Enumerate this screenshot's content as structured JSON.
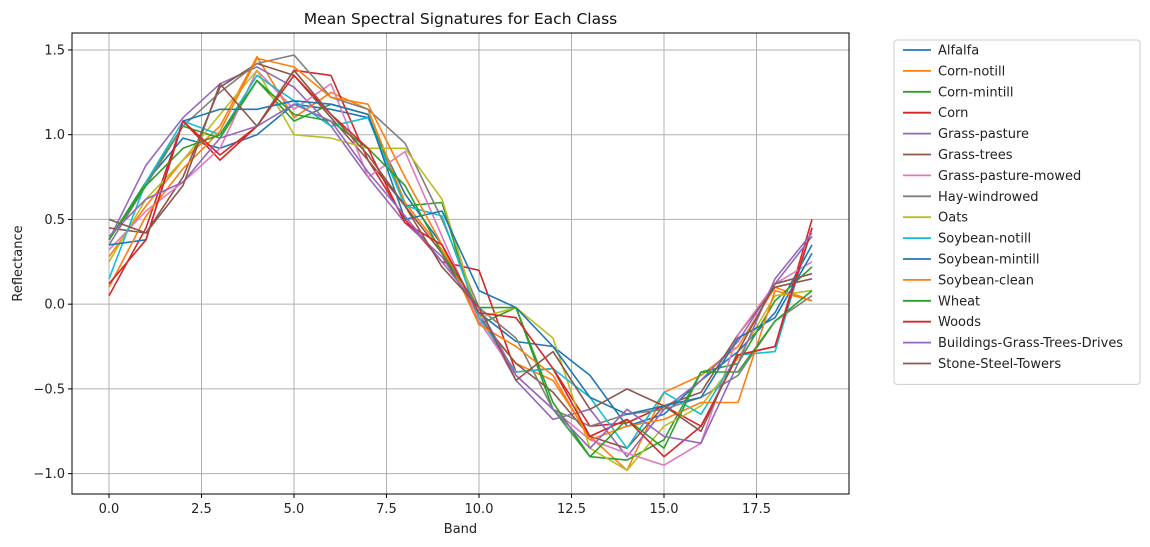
{
  "chart_data": {
    "type": "line",
    "title": "Mean Spectral Signatures for Each Class",
    "xlabel": "Band",
    "ylabel": "Reflectance",
    "xlim": [
      -1.0,
      20.0
    ],
    "ylim": [
      -1.12,
      1.6
    ],
    "x_ticks": [
      0.0,
      2.5,
      5.0,
      7.5,
      10.0,
      12.5,
      15.0,
      17.5
    ],
    "x_tick_labels": [
      "0.0",
      "2.5",
      "5.0",
      "7.5",
      "10.0",
      "12.5",
      "15.0",
      "17.5"
    ],
    "y_ticks": [
      -1.0,
      -0.5,
      0.0,
      0.5,
      1.0,
      1.5
    ],
    "y_tick_labels": [
      "−1.0",
      "−0.5",
      "0.0",
      "0.5",
      "1.0",
      "1.5"
    ],
    "grid": true,
    "legend_position": "outside-right",
    "x": [
      0,
      1,
      2,
      3,
      4,
      5,
      6,
      7,
      8,
      9,
      10,
      11,
      12,
      13,
      14,
      15,
      16,
      17,
      18,
      19
    ],
    "series": [
      {
        "name": "Alfalfa",
        "color": "#1f77b4",
        "values": [
          0.38,
          0.72,
          0.98,
          0.92,
          1.0,
          1.18,
          1.15,
          1.1,
          0.65,
          0.35,
          -0.05,
          -0.22,
          -0.25,
          -0.42,
          -0.72,
          -0.65,
          -0.45,
          -0.28,
          -0.05,
          0.35
        ]
      },
      {
        "name": "Corn-notill",
        "color": "#ff7f0e",
        "values": [
          0.28,
          0.58,
          0.85,
          1.05,
          1.46,
          1.1,
          1.25,
          1.15,
          0.6,
          0.32,
          -0.08,
          -0.35,
          -0.45,
          -0.78,
          -0.98,
          -0.52,
          -0.42,
          -0.25,
          0.1,
          0.02
        ]
      },
      {
        "name": "Corn-mintill",
        "color": "#2ca02c",
        "values": [
          0.38,
          0.72,
          1.05,
          0.98,
          1.32,
          1.08,
          1.18,
          1.12,
          0.58,
          0.6,
          -0.12,
          -0.02,
          -0.62,
          -0.9,
          -0.92,
          -0.8,
          -0.4,
          -0.35,
          0.02,
          0.22
        ]
      },
      {
        "name": "Corn",
        "color": "#d62728",
        "values": [
          0.05,
          0.45,
          1.08,
          0.85,
          1.05,
          1.38,
          1.35,
          0.85,
          0.5,
          0.25,
          0.2,
          -0.4,
          -0.38,
          -0.72,
          -0.7,
          -0.6,
          -0.72,
          -0.3,
          -0.25,
          0.5
        ]
      },
      {
        "name": "Grass-pasture",
        "color": "#9467bd",
        "values": [
          0.38,
          0.82,
          1.1,
          1.3,
          1.4,
          1.28,
          1.05,
          0.75,
          0.48,
          0.28,
          -0.05,
          -0.45,
          -0.68,
          -0.62,
          -0.9,
          -0.62,
          -0.45,
          -0.22,
          0.12,
          0.4
        ]
      },
      {
        "name": "Grass-trees",
        "color": "#8c564b",
        "values": [
          0.45,
          0.42,
          0.75,
          1.28,
          1.42,
          1.35,
          1.1,
          0.85,
          0.58,
          0.3,
          -0.08,
          -0.35,
          -0.52,
          -0.78,
          -0.85,
          -0.6,
          -0.52,
          -0.18,
          0.1,
          0.15
        ]
      },
      {
        "name": "Grass-pasture-mowed",
        "color": "#e377c2",
        "values": [
          0.32,
          0.55,
          0.72,
          0.92,
          1.38,
          1.15,
          1.3,
          0.75,
          0.9,
          0.4,
          -0.1,
          -0.42,
          -0.62,
          -0.8,
          -0.88,
          -0.95,
          -0.82,
          -0.18,
          0.12,
          0.25
        ]
      },
      {
        "name": "Hay-windrowed",
        "color": "#7f7f7f",
        "values": [
          0.35,
          0.7,
          1.05,
          1.25,
          1.42,
          1.47,
          1.22,
          1.15,
          0.95,
          0.5,
          -0.02,
          -0.2,
          -0.62,
          -0.72,
          -0.65,
          -0.62,
          -0.55,
          -0.42,
          -0.1,
          0.05
        ]
      },
      {
        "name": "Oats",
        "color": "#bcbd22",
        "values": [
          0.25,
          0.62,
          0.85,
          1.12,
          1.38,
          1.0,
          0.98,
          0.92,
          0.92,
          0.62,
          -0.08,
          -0.02,
          -0.2,
          -0.85,
          -0.98,
          -0.72,
          -0.6,
          -0.32,
          0.05,
          0.08
        ]
      },
      {
        "name": "Soybean-notill",
        "color": "#17becf",
        "values": [
          0.15,
          0.72,
          1.08,
          1.0,
          1.35,
          1.2,
          1.05,
          1.1,
          0.58,
          0.52,
          -0.08,
          -0.4,
          -0.38,
          -0.55,
          -0.85,
          -0.52,
          -0.65,
          -0.3,
          -0.28,
          0.45
        ]
      },
      {
        "name": "Soybean-mintill",
        "color": "#1f77b4",
        "values": [
          0.35,
          0.38,
          1.08,
          1.15,
          1.15,
          1.2,
          1.18,
          1.12,
          0.5,
          0.55,
          0.08,
          -0.02,
          -0.25,
          -0.55,
          -0.65,
          -0.6,
          -0.55,
          -0.2,
          -0.08,
          0.3
        ]
      },
      {
        "name": "Soybean-clean",
        "color": "#ff7f0e",
        "values": [
          0.1,
          0.52,
          0.8,
          1.02,
          1.45,
          1.4,
          1.22,
          1.18,
          0.75,
          0.35,
          -0.12,
          -0.25,
          -0.42,
          -0.8,
          -0.72,
          -0.68,
          -0.58,
          -0.58,
          0.08,
          0.02
        ]
      },
      {
        "name": "Wheat",
        "color": "#2ca02c",
        "values": [
          0.38,
          0.7,
          0.92,
          1.0,
          1.32,
          1.12,
          1.08,
          0.92,
          0.7,
          0.3,
          -0.02,
          -0.02,
          -0.58,
          -0.9,
          -0.68,
          -0.85,
          -0.4,
          -0.4,
          -0.1,
          0.08
        ]
      },
      {
        "name": "Woods",
        "color": "#d62728",
        "values": [
          0.12,
          0.38,
          1.08,
          0.88,
          1.05,
          1.35,
          1.12,
          0.92,
          0.48,
          0.35,
          -0.05,
          -0.08,
          -0.38,
          -0.78,
          -0.68,
          -0.9,
          -0.72,
          -0.3,
          -0.25,
          0.45
        ]
      },
      {
        "name": "Buildings-Grass-Trees-Drives",
        "color": "#9467bd",
        "values": [
          0.4,
          0.62,
          0.72,
          0.98,
          1.05,
          1.18,
          1.08,
          0.78,
          0.52,
          0.25,
          -0.02,
          -0.42,
          -0.62,
          -0.85,
          -0.62,
          -0.78,
          -0.82,
          -0.35,
          0.15,
          0.42
        ]
      },
      {
        "name": "Stone-Steel-Towers",
        "color": "#8c564b",
        "values": [
          0.5,
          0.42,
          0.7,
          1.3,
          1.05,
          1.38,
          1.12,
          0.88,
          0.58,
          0.22,
          -0.02,
          -0.45,
          -0.28,
          -0.62,
          -0.5,
          -0.6,
          -0.75,
          -0.28,
          0.12,
          0.18
        ]
      }
    ]
  }
}
